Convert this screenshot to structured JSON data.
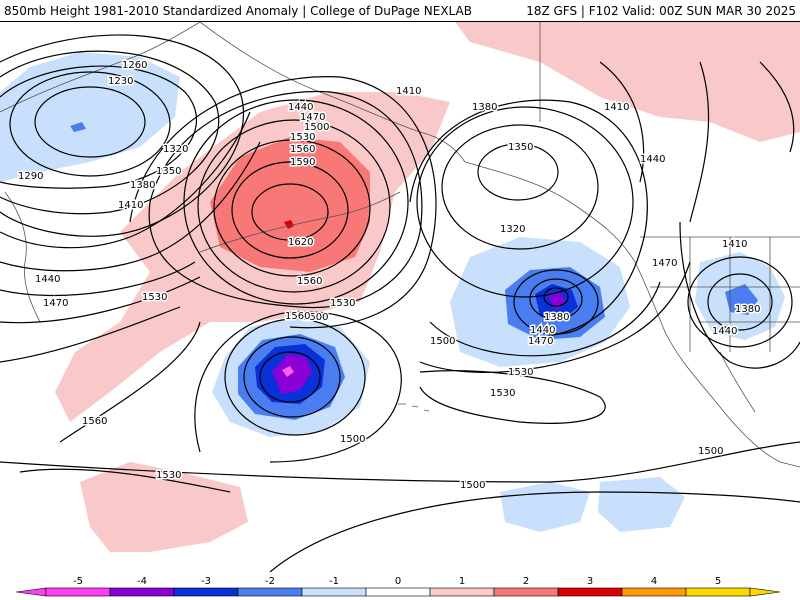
{
  "header": {
    "title_left": "850mb Height 1981-2010 Standardized Anomaly | College of DuPage NEXLAB",
    "title_right": "18Z GFS | F102 Valid: 00Z SUN MAR 30 2025"
  },
  "map": {
    "contour_labels": [
      "1260",
      "1230",
      "1320",
      "1290",
      "1350",
      "1380",
      "1410",
      "1440",
      "1470",
      "1530",
      "1560",
      "1440",
      "1470",
      "1500",
      "1530",
      "1560",
      "1590",
      "1620",
      "1560",
      "1530",
      "1500",
      "1410",
      "1380",
      "1350",
      "1320",
      "1410",
      "1440",
      "1380",
      "1440",
      "1470",
      "1500",
      "1470",
      "1410",
      "1380",
      "1440",
      "1530",
      "1530",
      "1500",
      "1500",
      "1560",
      "1530",
      "1500"
    ],
    "colors": {
      "land_outline": "#555555",
      "contour": "#000000",
      "anom_neg5": "#ff5de8",
      "anom_neg4": "#8a00d6",
      "anom_neg3": "#0a30d8",
      "anom_neg2": "#4a7ef0",
      "anom_neg1": "#c8e0fb",
      "anom_pos1": "#f9c8c8",
      "anom_pos2": "#f87878",
      "anom_pos3": "#d80000"
    }
  },
  "legend": {
    "ticks": [
      "-5",
      "-4",
      "-3",
      "-2",
      "-1",
      "0",
      "1",
      "2",
      "3",
      "4",
      "5"
    ],
    "colors": [
      "#ff3ef0",
      "#8a00d6",
      "#0a30d8",
      "#4a7ef0",
      "#c8e0fb",
      "#ffffff",
      "#f9c8c8",
      "#f87878",
      "#d80000",
      "#ff9a00",
      "#ffd700"
    ]
  }
}
